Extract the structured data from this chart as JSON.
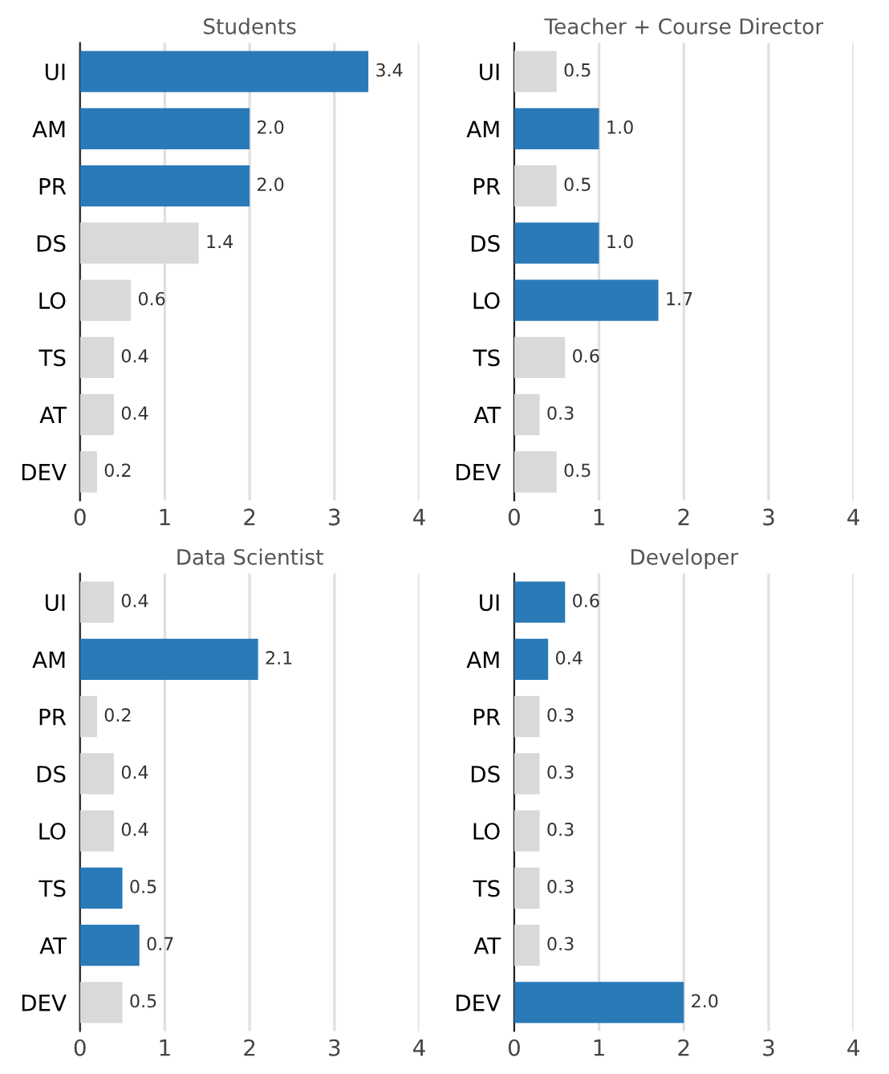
{
  "chart_data": [
    {
      "type": "bar",
      "orientation": "horizontal",
      "title": "Students",
      "categories": [
        "UI",
        "AM",
        "PR",
        "DS",
        "LO",
        "TS",
        "AT",
        "DEV"
      ],
      "values": [
        3.4,
        2.0,
        2.0,
        1.4,
        0.6,
        0.4,
        0.4,
        0.2
      ],
      "colors": [
        "#2a7ab8",
        "#2a7ab8",
        "#2a7ab8",
        "#d9d9d9",
        "#d9d9d9",
        "#d9d9d9",
        "#d9d9d9",
        "#d9d9d9"
      ],
      "value_labels": [
        "3.4",
        "2.0",
        "2.0",
        "1.4",
        "0.6",
        "0.4",
        "0.4",
        "0.2"
      ],
      "xlim": [
        0,
        4
      ],
      "xticks": [
        0,
        1,
        2,
        3,
        4
      ],
      "grid": "x"
    },
    {
      "type": "bar",
      "orientation": "horizontal",
      "title": "Teacher + Course Director",
      "categories": [
        "UI",
        "AM",
        "PR",
        "DS",
        "LO",
        "TS",
        "AT",
        "DEV"
      ],
      "values": [
        0.5,
        1.0,
        0.5,
        1.0,
        1.7,
        0.6,
        0.3,
        0.5
      ],
      "colors": [
        "#d9d9d9",
        "#2a7ab8",
        "#d9d9d9",
        "#2a7ab8",
        "#2a7ab8",
        "#d9d9d9",
        "#d9d9d9",
        "#d9d9d9"
      ],
      "value_labels": [
        "0.5",
        "1.0",
        "0.5",
        "1.0",
        "1.7",
        "0.6",
        "0.3",
        "0.5"
      ],
      "xlim": [
        0,
        4
      ],
      "xticks": [
        0,
        1,
        2,
        3,
        4
      ],
      "grid": "x"
    },
    {
      "type": "bar",
      "orientation": "horizontal",
      "title": "Data Scientist",
      "categories": [
        "UI",
        "AM",
        "PR",
        "DS",
        "LO",
        "TS",
        "AT",
        "DEV"
      ],
      "values": [
        0.4,
        2.1,
        0.2,
        0.4,
        0.4,
        0.5,
        0.7,
        0.5
      ],
      "colors": [
        "#d9d9d9",
        "#2a7ab8",
        "#d9d9d9",
        "#d9d9d9",
        "#d9d9d9",
        "#2a7ab8",
        "#2a7ab8",
        "#d9d9d9"
      ],
      "value_labels": [
        "0.4",
        "2.1",
        "0.2",
        "0.4",
        "0.4",
        "0.5",
        "0.7",
        "0.5"
      ],
      "xlim": [
        0,
        4
      ],
      "xticks": [
        0,
        1,
        2,
        3,
        4
      ],
      "grid": "x"
    },
    {
      "type": "bar",
      "orientation": "horizontal",
      "title": "Developer",
      "categories": [
        "UI",
        "AM",
        "PR",
        "DS",
        "LO",
        "TS",
        "AT",
        "DEV"
      ],
      "values": [
        0.6,
        0.4,
        0.3,
        0.3,
        0.3,
        0.3,
        0.3,
        2.0
      ],
      "colors": [
        "#2a7ab8",
        "#2a7ab8",
        "#d9d9d9",
        "#d9d9d9",
        "#d9d9d9",
        "#d9d9d9",
        "#d9d9d9",
        "#2a7ab8"
      ],
      "value_labels": [
        "0.6",
        "0.4",
        "0.3",
        "0.3",
        "0.3",
        "0.3",
        "0.3",
        "2.0"
      ],
      "xlim": [
        0,
        4
      ],
      "xticks": [
        0,
        1,
        2,
        3,
        4
      ],
      "grid": "x"
    }
  ]
}
